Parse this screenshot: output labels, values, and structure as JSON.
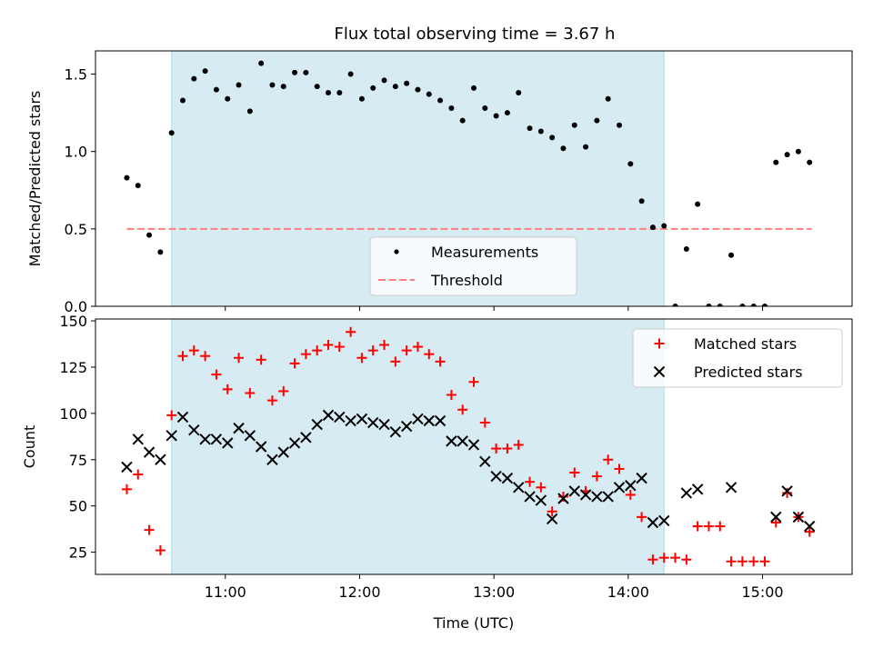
{
  "title": "Flux total observing time = 3.67 h",
  "colors": {
    "measure": "#000000",
    "threshold": "#ff7f7f",
    "matched": "#ff0000",
    "predicted": "#000000",
    "span": "#add8e6"
  },
  "chart_data": [
    {
      "type": "scatter",
      "panel": "top",
      "ylabel": "Matched/Predicted stars",
      "ylim": [
        0,
        1.65
      ],
      "xlim": [
        "10:02",
        "15:40"
      ],
      "yticks": [
        0.0,
        0.5,
        1.0,
        1.5
      ],
      "ytick_labels": [
        "0.0",
        "0.5",
        "1.0",
        "1.5"
      ],
      "span": {
        "x0": "10:36",
        "x1": "14:16"
      },
      "legend": {
        "position": "lower-center",
        "entries": [
          "Measurements",
          "Threshold"
        ]
      },
      "threshold": {
        "name": "Threshold",
        "y": 0.5,
        "x0": "10:16",
        "x1": "15:22"
      },
      "series": [
        {
          "name": "Measurements",
          "marker": "dot",
          "points": [
            [
              "10:16",
              0.83
            ],
            [
              "10:21",
              0.78
            ],
            [
              "10:26",
              0.46
            ],
            [
              "10:31",
              0.35
            ],
            [
              "10:36",
              1.12
            ],
            [
              "10:41",
              1.33
            ],
            [
              "10:46",
              1.47
            ],
            [
              "10:51",
              1.52
            ],
            [
              "10:56",
              1.4
            ],
            [
              "11:01",
              1.34
            ],
            [
              "11:06",
              1.43
            ],
            [
              "11:11",
              1.26
            ],
            [
              "11:16",
              1.57
            ],
            [
              "11:21",
              1.43
            ],
            [
              "11:26",
              1.42
            ],
            [
              "11:31",
              1.51
            ],
            [
              "11:36",
              1.51
            ],
            [
              "11:41",
              1.42
            ],
            [
              "11:46",
              1.38
            ],
            [
              "11:51",
              1.38
            ],
            [
              "11:56",
              1.5
            ],
            [
              "12:01",
              1.34
            ],
            [
              "12:06",
              1.41
            ],
            [
              "12:11",
              1.46
            ],
            [
              "12:16",
              1.42
            ],
            [
              "12:21",
              1.44
            ],
            [
              "12:26",
              1.4
            ],
            [
              "12:31",
              1.37
            ],
            [
              "12:36",
              1.33
            ],
            [
              "12:41",
              1.28
            ],
            [
              "12:46",
              1.2
            ],
            [
              "12:51",
              1.41
            ],
            [
              "12:56",
              1.28
            ],
            [
              "13:01",
              1.23
            ],
            [
              "13:06",
              1.25
            ],
            [
              "13:11",
              1.38
            ],
            [
              "13:16",
              1.15
            ],
            [
              "13:21",
              1.13
            ],
            [
              "13:26",
              1.09
            ],
            [
              "13:31",
              1.02
            ],
            [
              "13:36",
              1.17
            ],
            [
              "13:41",
              1.03
            ],
            [
              "13:46",
              1.2
            ],
            [
              "13:51",
              1.34
            ],
            [
              "13:56",
              1.17
            ],
            [
              "14:01",
              0.92
            ],
            [
              "14:06",
              0.68
            ],
            [
              "14:11",
              0.51
            ],
            [
              "14:16",
              0.52
            ],
            [
              "14:21",
              0.0
            ],
            [
              "14:26",
              0.37
            ],
            [
              "14:31",
              0.66
            ],
            [
              "14:36",
              0.0
            ],
            [
              "14:41",
              0.0
            ],
            [
              "14:46",
              0.33
            ],
            [
              "14:51",
              0.0
            ],
            [
              "14:56",
              0.0
            ],
            [
              "15:01",
              0.0
            ],
            [
              "15:06",
              0.93
            ],
            [
              "15:11",
              0.98
            ],
            [
              "15:16",
              1.0
            ],
            [
              "15:21",
              0.93
            ]
          ]
        }
      ]
    },
    {
      "type": "scatter",
      "panel": "bottom",
      "xlabel": "Time (UTC)",
      "ylabel": "Count",
      "ylim": [
        13,
        151
      ],
      "xlim": [
        "10:02",
        "15:40"
      ],
      "yticks": [
        25,
        50,
        75,
        100,
        125,
        150
      ],
      "ytick_labels": [
        "25",
        "50",
        "75",
        "100",
        "125",
        "150"
      ],
      "xticks": [
        "11:00",
        "12:00",
        "13:00",
        "14:00",
        "15:00"
      ],
      "xtick_labels": [
        "11:00",
        "12:00",
        "13:00",
        "14:00",
        "15:00"
      ],
      "span": {
        "x0": "10:36",
        "x1": "14:16"
      },
      "legend": {
        "position": "top-right",
        "entries": [
          "Matched stars",
          "Predicted stars"
        ]
      },
      "series": [
        {
          "name": "Matched stars",
          "marker": "plus",
          "points": [
            [
              "10:16",
              59
            ],
            [
              "10:21",
              67
            ],
            [
              "10:26",
              37
            ],
            [
              "10:31",
              26
            ],
            [
              "10:36",
              99
            ],
            [
              "10:41",
              131
            ],
            [
              "10:46",
              134
            ],
            [
              "10:51",
              131
            ],
            [
              "10:56",
              121
            ],
            [
              "11:01",
              113
            ],
            [
              "11:06",
              130
            ],
            [
              "11:11",
              111
            ],
            [
              "11:16",
              129
            ],
            [
              "11:21",
              107
            ],
            [
              "11:26",
              112
            ],
            [
              "11:31",
              127
            ],
            [
              "11:36",
              132
            ],
            [
              "11:41",
              134
            ],
            [
              "11:46",
              137
            ],
            [
              "11:51",
              136
            ],
            [
              "11:56",
              144
            ],
            [
              "12:01",
              130
            ],
            [
              "12:06",
              134
            ],
            [
              "12:11",
              137
            ],
            [
              "12:16",
              128
            ],
            [
              "12:21",
              134
            ],
            [
              "12:26",
              136
            ],
            [
              "12:31",
              132
            ],
            [
              "12:36",
              128
            ],
            [
              "12:41",
              110
            ],
            [
              "12:46",
              102
            ],
            [
              "12:51",
              117
            ],
            [
              "12:56",
              95
            ],
            [
              "13:01",
              81
            ],
            [
              "13:06",
              81
            ],
            [
              "13:11",
              83
            ],
            [
              "13:16",
              63
            ],
            [
              "13:21",
              60
            ],
            [
              "13:26",
              47
            ],
            [
              "13:31",
              55
            ],
            [
              "13:36",
              68
            ],
            [
              "13:41",
              58
            ],
            [
              "13:46",
              66
            ],
            [
              "13:51",
              75
            ],
            [
              "13:56",
              70
            ],
            [
              "14:01",
              56
            ],
            [
              "14:06",
              44
            ],
            [
              "14:11",
              21
            ],
            [
              "14:16",
              22
            ],
            [
              "14:21",
              22
            ],
            [
              "14:26",
              21
            ],
            [
              "14:31",
              39
            ],
            [
              "14:36",
              39
            ],
            [
              "14:41",
              39
            ],
            [
              "14:46",
              20
            ],
            [
              "14:51",
              20
            ],
            [
              "14:56",
              20
            ],
            [
              "15:01",
              20
            ],
            [
              "15:06",
              41
            ],
            [
              "15:11",
              57
            ],
            [
              "15:16",
              44
            ],
            [
              "15:21",
              36
            ]
          ]
        },
        {
          "name": "Predicted stars",
          "marker": "x",
          "points": [
            [
              "10:16",
              71
            ],
            [
              "10:21",
              86
            ],
            [
              "10:26",
              79
            ],
            [
              "10:31",
              75
            ],
            [
              "10:36",
              88
            ],
            [
              "10:41",
              98
            ],
            [
              "10:46",
              91
            ],
            [
              "10:51",
              86
            ],
            [
              "10:56",
              86
            ],
            [
              "11:01",
              84
            ],
            [
              "11:06",
              92
            ],
            [
              "11:11",
              88
            ],
            [
              "11:16",
              82
            ],
            [
              "11:21",
              75
            ],
            [
              "11:26",
              79
            ],
            [
              "11:31",
              84
            ],
            [
              "11:36",
              87
            ],
            [
              "11:41",
              94
            ],
            [
              "11:46",
              99
            ],
            [
              "11:51",
              98
            ],
            [
              "11:56",
              96
            ],
            [
              "12:01",
              97
            ],
            [
              "12:06",
              95
            ],
            [
              "12:11",
              94
            ],
            [
              "12:16",
              90
            ],
            [
              "12:21",
              93
            ],
            [
              "12:26",
              97
            ],
            [
              "12:31",
              96
            ],
            [
              "12:36",
              96
            ],
            [
              "12:41",
              85
            ],
            [
              "12:46",
              85
            ],
            [
              "12:51",
              83
            ],
            [
              "12:56",
              74
            ],
            [
              "13:01",
              66
            ],
            [
              "13:06",
              65
            ],
            [
              "13:11",
              60
            ],
            [
              "13:16",
              55
            ],
            [
              "13:21",
              53
            ],
            [
              "13:26",
              43
            ],
            [
              "13:31",
              54
            ],
            [
              "13:36",
              58
            ],
            [
              "13:41",
              56
            ],
            [
              "13:46",
              55
            ],
            [
              "13:51",
              55
            ],
            [
              "13:56",
              60
            ],
            [
              "14:01",
              61
            ],
            [
              "14:06",
              65
            ],
            [
              "14:11",
              41
            ],
            [
              "14:16",
              42
            ],
            [
              "14:26",
              57
            ],
            [
              "14:31",
              59
            ],
            [
              "14:46",
              60
            ],
            [
              "15:06",
              44
            ],
            [
              "15:11",
              58
            ],
            [
              "15:16",
              44
            ],
            [
              "15:21",
              39
            ]
          ]
        }
      ]
    }
  ]
}
